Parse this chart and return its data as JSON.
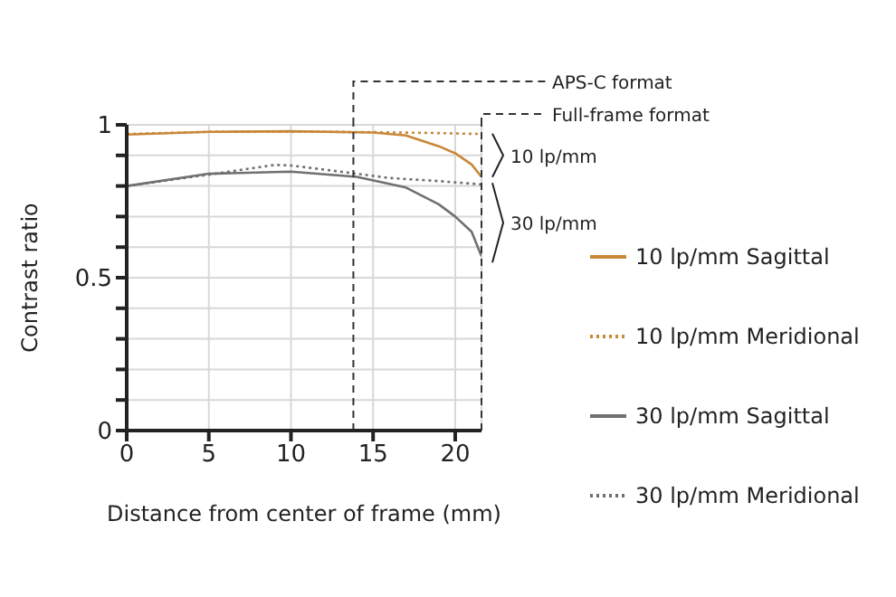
{
  "chart_data": {
    "type": "line",
    "xlabel": "Distance from center of frame (mm)",
    "ylabel": "Contrast ratio",
    "xlim": [
      0,
      21.6
    ],
    "xticks": [
      0,
      5,
      10,
      15,
      20
    ],
    "ylim": [
      0,
      1
    ],
    "yticks": [
      0,
      {
        "value": 0.1,
        "label": null
      },
      {
        "value": 0.2,
        "label": null
      },
      {
        "value": 0.3,
        "label": null
      },
      {
        "value": 0.4,
        "label": null
      },
      0.5,
      {
        "value": 0.6,
        "label": null
      },
      {
        "value": 0.7,
        "label": null
      },
      {
        "value": 0.8,
        "label": null
      },
      {
        "value": 0.9,
        "label": null
      },
      1
    ],
    "grid": true,
    "legend": "right",
    "marker": "none",
    "series": [
      {
        "name": "10 lp/mm Sagittal",
        "color": "#c8883a",
        "line_style": "solid",
        "x": [
          0,
          5,
          10,
          15,
          17,
          19,
          20,
          21,
          21.6
        ],
        "values": [
          0.968,
          0.977,
          0.979,
          0.975,
          0.965,
          0.93,
          0.907,
          0.87,
          0.83
        ]
      },
      {
        "name": "10 lp/mm Meridional",
        "color": "#c8883a",
        "line_style": "dotted",
        "x": [
          0,
          5,
          10,
          15,
          19,
          21.6
        ],
        "values": [
          0.97,
          0.977,
          0.978,
          0.976,
          0.973,
          0.97
        ]
      },
      {
        "name": "30 lp/mm Sagittal",
        "color": "#707070",
        "line_style": "solid",
        "x": [
          0,
          5,
          10,
          14,
          17,
          19,
          20,
          21,
          21.6
        ],
        "values": [
          0.8,
          0.84,
          0.847,
          0.83,
          0.795,
          0.74,
          0.7,
          0.65,
          0.57
        ]
      },
      {
        "name": "30 lp/mm Meridional",
        "color": "#707070",
        "line_style": "dotted",
        "x": [
          0,
          5,
          9,
          10,
          13,
          16,
          19,
          21.6
        ],
        "values": [
          0.8,
          0.837,
          0.869,
          0.867,
          0.847,
          0.826,
          0.816,
          0.805
        ]
      }
    ],
    "ref_lines": [
      {
        "axis": "x",
        "value": 13.8,
        "label": "APS-C format",
        "color": "#333333",
        "line_style": "dashed"
      },
      {
        "axis": "x",
        "value": 21.6,
        "label": "Full-frame format",
        "color": "#333333",
        "line_style": "dashed"
      }
    ],
    "annotations": [
      {
        "text": "10 lp/mm",
        "x": 21.6,
        "y": 0.9
      },
      {
        "text": "30 lp/mm",
        "x": 21.6,
        "y": 0.68
      }
    ]
  }
}
